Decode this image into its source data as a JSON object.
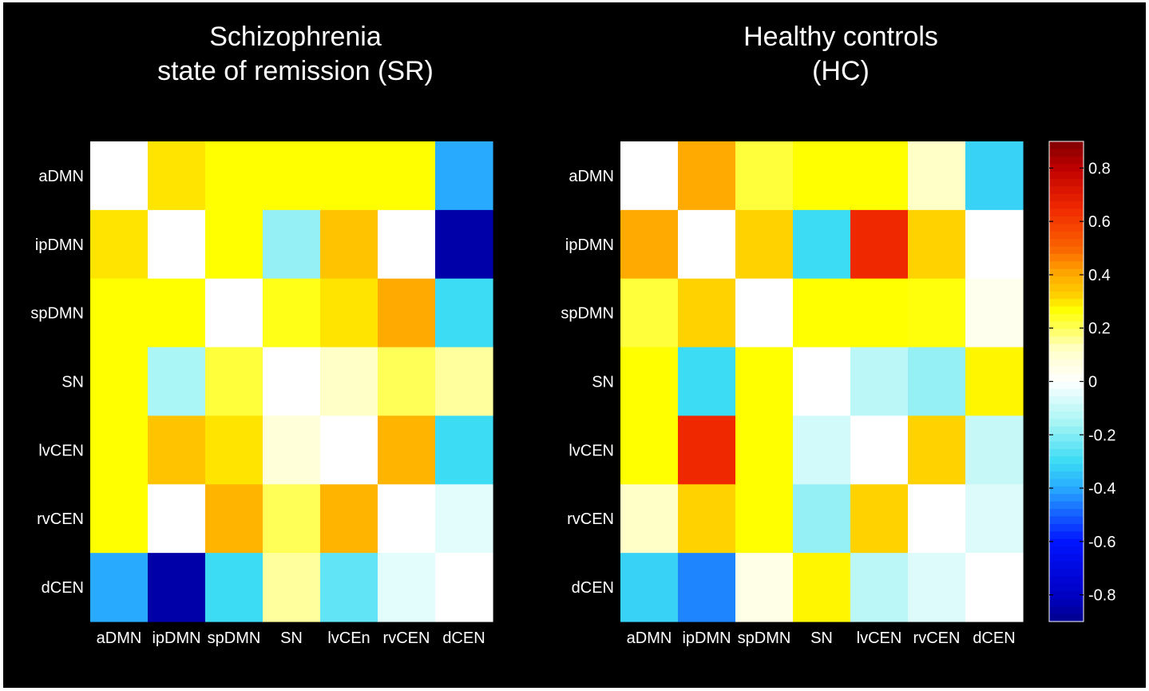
{
  "chart_data": [
    {
      "type": "heatmap",
      "title": [
        "Schizophrenia",
        "state of remission (SR)"
      ],
      "row_labels": [
        "aDMN",
        "ipDMN",
        "spDMN",
        "SN",
        "lvCEN",
        "rvCEN",
        "dCEN"
      ],
      "col_labels": [
        "aDMN",
        "ipDMN",
        "spDMN",
        "SN",
        "lvCEn",
        "rvCEN",
        "dCEN"
      ],
      "values": [
        [
          0.0,
          0.3,
          0.27,
          0.27,
          0.27,
          0.27,
          -0.4
        ],
        [
          0.3,
          0.0,
          0.27,
          -0.18,
          0.35,
          0.0,
          -0.85
        ],
        [
          0.27,
          0.27,
          0.0,
          0.25,
          0.3,
          0.4,
          -0.3
        ],
        [
          0.27,
          -0.15,
          0.22,
          0.0,
          0.12,
          0.2,
          0.15
        ],
        [
          0.27,
          0.35,
          0.3,
          0.08,
          0.0,
          0.38,
          -0.3
        ],
        [
          0.27,
          0.0,
          0.38,
          0.2,
          0.38,
          0.0,
          -0.05
        ],
        [
          -0.4,
          -0.85,
          -0.3,
          0.15,
          -0.25,
          -0.05,
          0.0
        ]
      ]
    },
    {
      "type": "heatmap",
      "title": [
        "Healthy controls",
        "(HC)"
      ],
      "row_labels": [
        "aDMN",
        "ipDMN",
        "spDMN",
        "SN",
        "lvCEN",
        "rvCEN",
        "dCEN"
      ],
      "col_labels": [
        "aDMN",
        "ipDMN",
        "spDMN",
        "SN",
        "lvCEN",
        "rvCEN",
        "dCEN"
      ],
      "values": [
        [
          0.0,
          0.4,
          0.22,
          0.27,
          0.27,
          0.12,
          -0.32
        ],
        [
          0.4,
          0.0,
          0.32,
          -0.3,
          0.65,
          0.32,
          0.0
        ],
        [
          0.22,
          0.32,
          0.0,
          0.27,
          0.27,
          0.26,
          0.04
        ],
        [
          0.27,
          -0.3,
          0.27,
          0.0,
          -0.12,
          -0.18,
          0.28
        ],
        [
          0.27,
          0.65,
          0.27,
          -0.08,
          0.0,
          0.32,
          -0.1
        ],
        [
          0.12,
          0.32,
          0.27,
          -0.18,
          0.32,
          0.0,
          -0.06
        ],
        [
          -0.32,
          -0.45,
          0.05,
          0.28,
          -0.12,
          -0.06,
          0.0
        ]
      ]
    }
  ],
  "colorbar": {
    "range": [
      -0.9,
      0.9
    ],
    "tick_values": [
      0.8,
      0.6,
      0.4,
      0.2,
      0,
      -0.2,
      -0.4,
      -0.6,
      -0.8
    ],
    "tick_labels": [
      "0.8",
      "0.6",
      "0.4",
      "0.2",
      "0",
      "-0.2",
      "-0.4",
      "-0.6",
      "-0.8"
    ],
    "colormap": "jet"
  }
}
